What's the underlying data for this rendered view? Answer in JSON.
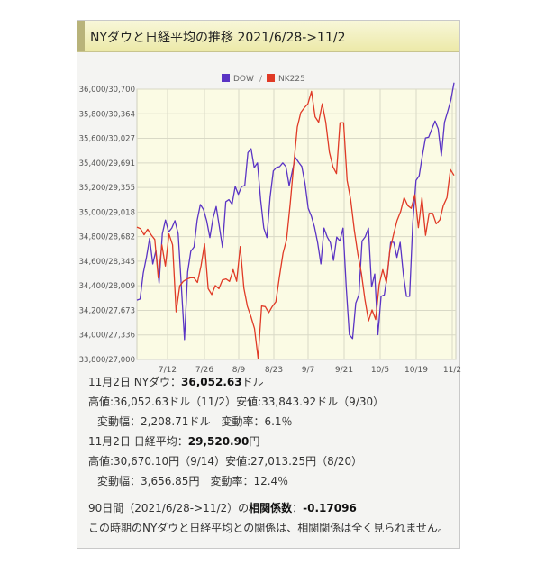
{
  "header": {
    "title": "NYダウと日経平均の推移 2021/6/28->11/2"
  },
  "colors": {
    "dow": "#5a34c4",
    "nk": "#e03a26",
    "plot_bg": "#fbfbe4",
    "grid": "#d9d9c6"
  },
  "chart_data": {
    "type": "line",
    "x_ticks": [
      "7/12",
      "7/26",
      "8/9",
      "8/23",
      "9/7",
      "9/21",
      "10/5",
      "10/19",
      "11/2"
    ],
    "y_tick_labels": [
      "33,800/27,000",
      "34,000/27,336",
      "34,200/27,673",
      "34,400/28,009",
      "34,600/28,345",
      "34,800/28,682",
      "35,000/29,018",
      "35,200/29,355",
      "35,400/29,691",
      "35,600/30,027",
      "35,800/30,364",
      "36,000/30,700"
    ],
    "ylim_dow": [
      33800,
      36000
    ],
    "ylim_nk": [
      27000,
      30700
    ],
    "grid": true,
    "legend_position": "top",
    "series": [
      {
        "name": "DOW",
        "values": [
          34283,
          34292,
          34502,
          34633,
          34786,
          34577,
          34687,
          34421,
          34823,
          34935,
          34838,
          34870,
          34930,
          34823,
          34398,
          33962,
          34511,
          34681,
          34716,
          34935,
          35061,
          35021,
          34930,
          34792,
          34950,
          35045,
          34880,
          34712,
          35084,
          35101,
          35064,
          35208,
          35144,
          35208,
          35215,
          35484,
          35515,
          35361,
          35400,
          35101,
          34870,
          34792,
          35120,
          35335,
          35363,
          35369,
          35400,
          35369,
          35213,
          35335,
          35443,
          35405,
          35371,
          35232,
          35031,
          34968,
          34879,
          34751,
          34577,
          34869,
          34798,
          34752,
          34607,
          34796,
          34765,
          34869,
          34393,
          34002,
          33970,
          34258,
          34326,
          34764,
          34798,
          34869,
          34390,
          34496,
          34002,
          34314,
          34326,
          34496,
          34754,
          34754,
          34631,
          34754,
          34496,
          34314,
          34314,
          34912,
          35258,
          35295,
          35457,
          35603,
          35609,
          35677,
          35741,
          35677,
          35457,
          35731,
          35820,
          35913,
          36053
        ]
      },
      {
        "name": "NK225",
        "values": [
          28812,
          28791,
          28707,
          28783,
          28707,
          28643,
          28118,
          28569,
          28279,
          28718,
          28569,
          27652,
          28008,
          28069,
          28100,
          28117,
          28117,
          28055,
          28284,
          28584,
          27970,
          27889,
          28012,
          27970,
          28089,
          28102,
          28069,
          28230,
          28070,
          28547,
          27977,
          27729,
          27585,
          27424,
          27013,
          27732,
          27724,
          27641,
          27727,
          27789,
          28134,
          28455,
          28641,
          29128,
          29660,
          30182,
          30381,
          30447,
          30500,
          30670,
          30323,
          30248,
          30500,
          30248,
          29839,
          29640,
          29544,
          30240,
          30240,
          29453,
          29185,
          28771,
          28444,
          28178,
          27822,
          27528,
          27678,
          27548,
          28025,
          28230,
          28048,
          28498,
          28708,
          28900,
          29025,
          29215,
          29106,
          29069,
          29255,
          28804,
          29215,
          28700,
          29000,
          29000,
          28857,
          28910,
          29106,
          29215,
          29600,
          29520
        ]
      }
    ]
  },
  "info": {
    "dow_date_label": "11月2日 NYダウ：",
    "dow_value": "36,052.63",
    "dow_unit": "ドル",
    "dow_range": "高値:36,052.63ドル（11/2）安値:33,843.92ドル（9/30）",
    "dow_change": "変動幅：2,208.71ドル　変動率：6.1％",
    "nk_date_label": "11月2日 日経平均：",
    "nk_value": "29,520.90",
    "nk_unit": "円",
    "nk_range": "高値:30,670.10円（9/14）安値:27,013.25円（8/20）",
    "nk_change": "変動幅：3,656.85円　変動率：12.4％",
    "corr_label": "90日間（2021/6/28->11/2）の",
    "corr_term": "相関係数",
    "corr_sep": "：",
    "corr_value": "-0.17096",
    "comment": "この時期のNYダウと日経平均との関係は、相関関係は全く見られません。"
  }
}
